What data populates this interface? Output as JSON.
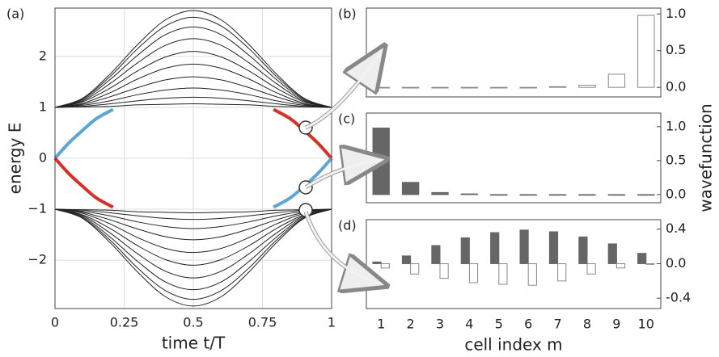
{
  "chart_data": [
    {
      "type": "line",
      "title": "(a)",
      "xlabel": "time t/T",
      "ylabel": "energy E",
      "x": [
        0,
        0.1,
        0.2,
        0.3,
        0.4,
        0.5,
        0.6,
        0.7,
        0.8,
        0.9,
        1
      ],
      "xlim": [
        0,
        1
      ],
      "xticks": [
        0,
        0.25,
        0.5,
        0.75,
        1
      ],
      "ylim": [
        -2.95,
        2.95
      ],
      "yticks": [
        {
          "value": -2,
          "label": "−2"
        },
        {
          "value": -1,
          "label": "−1"
        },
        0,
        1,
        2
      ],
      "grid": true,
      "series": [
        {
          "color": "#222222",
          "values": [
            1,
            1.01,
            1.02,
            1.05,
            1.06,
            1.07,
            1.06,
            1.05,
            1.02,
            1.01,
            1
          ]
        },
        {
          "color": "#222222",
          "values": [
            1,
            1.02,
            1.07,
            1.13,
            1.18,
            1.2,
            1.18,
            1.13,
            1.07,
            1.02,
            1
          ]
        },
        {
          "color": "#222222",
          "values": [
            1,
            1.04,
            1.13,
            1.25,
            1.34,
            1.38,
            1.34,
            1.25,
            1.13,
            1.04,
            1
          ]
        },
        {
          "color": "#222222",
          "values": [
            1,
            1.06,
            1.21,
            1.39,
            1.54,
            1.6,
            1.54,
            1.39,
            1.21,
            1.06,
            1
          ]
        },
        {
          "color": "#222222",
          "values": [
            1,
            1.08,
            1.29,
            1.56,
            1.77,
            1.85,
            1.77,
            1.56,
            1.29,
            1.08,
            1
          ]
        },
        {
          "color": "#222222",
          "values": [
            1,
            1.11,
            1.38,
            1.72,
            1.99,
            2.1,
            1.99,
            1.72,
            1.38,
            1.11,
            1
          ]
        },
        {
          "color": "#222222",
          "values": [
            1,
            1.13,
            1.47,
            1.88,
            2.22,
            2.35,
            2.22,
            1.88,
            1.47,
            1.13,
            1
          ]
        },
        {
          "color": "#222222",
          "values": [
            1,
            1.15,
            1.55,
            2.03,
            2.43,
            2.58,
            2.43,
            2.03,
            1.55,
            1.15,
            1
          ]
        },
        {
          "color": "#222222",
          "values": [
            1,
            1.17,
            1.61,
            2.16,
            2.6,
            2.77,
            2.6,
            2.16,
            1.61,
            1.17,
            1
          ]
        },
        {
          "color": "#222222",
          "values": [
            1,
            1.18,
            1.66,
            2.24,
            2.72,
            2.9,
            2.72,
            2.24,
            1.66,
            1.18,
            1
          ]
        },
        {
          "color": "#222222",
          "values": [
            -1,
            -1.01,
            -1.02,
            -1.05,
            -1.06,
            -1.07,
            -1.06,
            -1.05,
            -1.02,
            -1.01,
            -1
          ]
        },
        {
          "color": "#222222",
          "values": [
            -1,
            -1.02,
            -1.07,
            -1.13,
            -1.18,
            -1.2,
            -1.18,
            -1.13,
            -1.07,
            -1.02,
            -1
          ]
        },
        {
          "color": "#222222",
          "values": [
            -1,
            -1.04,
            -1.13,
            -1.25,
            -1.34,
            -1.38,
            -1.34,
            -1.25,
            -1.13,
            -1.04,
            -1
          ]
        },
        {
          "color": "#222222",
          "values": [
            -1,
            -1.06,
            -1.21,
            -1.39,
            -1.54,
            -1.6,
            -1.54,
            -1.39,
            -1.21,
            -1.06,
            -1
          ]
        },
        {
          "color": "#222222",
          "values": [
            -1,
            -1.08,
            -1.29,
            -1.56,
            -1.77,
            -1.85,
            -1.77,
            -1.56,
            -1.29,
            -1.08,
            -1
          ]
        },
        {
          "color": "#222222",
          "values": [
            -1,
            -1.11,
            -1.38,
            -1.72,
            -1.99,
            -2.1,
            -1.99,
            -1.72,
            -1.38,
            -1.11,
            -1
          ]
        },
        {
          "color": "#222222",
          "values": [
            -1,
            -1.13,
            -1.47,
            -1.88,
            -2.22,
            -2.35,
            -2.22,
            -1.88,
            -1.47,
            -1.13,
            -1
          ]
        },
        {
          "color": "#222222",
          "values": [
            -1,
            -1.15,
            -1.55,
            -2.03,
            -2.43,
            -2.58,
            -2.43,
            -2.03,
            -1.55,
            -1.15,
            -1
          ]
        },
        {
          "color": "#222222",
          "values": [
            -1,
            -1.17,
            -1.61,
            -2.16,
            -2.6,
            -2.77,
            -2.6,
            -2.16,
            -1.61,
            -1.17,
            -1
          ]
        },
        {
          "color": "#222222",
          "values": [
            -1,
            -1.18,
            -1.66,
            -2.24,
            -2.72,
            -2.9,
            -2.72,
            -2.24,
            -1.66,
            -1.18,
            -1
          ]
        },
        {
          "color": "#5aa7d6",
          "x": [
            0,
            0.05,
            0.1,
            0.15,
            0.21
          ],
          "values": [
            0,
            0.3,
            0.55,
            0.78,
            0.96
          ]
        },
        {
          "color": "#d93025",
          "x": [
            0,
            0.05,
            0.1,
            0.15,
            0.21
          ],
          "values": [
            0,
            -0.3,
            -0.55,
            -0.78,
            -0.96
          ]
        },
        {
          "color": "#d93025",
          "x": [
            0.79,
            0.85,
            0.9,
            0.95,
            1
          ],
          "values": [
            0.96,
            0.78,
            0.55,
            0.3,
            0
          ]
        },
        {
          "color": "#5aa7d6",
          "x": [
            0.79,
            0.85,
            0.9,
            0.95,
            1
          ],
          "values": [
            -0.96,
            -0.78,
            -0.55,
            -0.3,
            0
          ]
        }
      ]
    },
    {
      "type": "bar",
      "title": "(b)",
      "ylim": [
        -0.13,
        1.08
      ],
      "yticks": [
        {
          "value": 0,
          "label": "0.0"
        },
        0.5,
        {
          "value": 1,
          "label": "1.0"
        }
      ],
      "series": [
        {
          "color": "#ffffff",
          "values": [
            0,
            0,
            0,
            0,
            0,
            0,
            0.01,
            0.03,
            0.18,
            0.98
          ]
        }
      ]
    },
    {
      "type": "bar",
      "title": "(c)",
      "ylabel": "wavefunction",
      "ylim": [
        -0.12,
        1.2
      ],
      "yticks": [
        {
          "value": 0,
          "label": "0.0"
        },
        0.5,
        {
          "value": 1,
          "label": "1.0"
        }
      ],
      "series": [
        {
          "color": "#666666",
          "values": [
            0.98,
            0.18,
            0.03,
            0.01,
            0,
            0,
            0,
            0,
            0,
            0
          ]
        }
      ]
    },
    {
      "type": "bar",
      "title": "(d)",
      "xlabel": "cell index m",
      "categories": [
        "1",
        "2",
        "3",
        "4",
        "5",
        "6",
        "7",
        "8",
        "9",
        "10"
      ],
      "ylim": [
        -0.52,
        0.51
      ],
      "yticks": [
        {
          "value": -0.4,
          "label": "-0.4"
        },
        {
          "value": 0,
          "label": "0.0"
        },
        0.4
      ],
      "series": [
        {
          "color": "#666666",
          "values": [
            0.02,
            0.09,
            0.21,
            0.3,
            0.36,
            0.39,
            0.37,
            0.31,
            0.23,
            0.12
          ]
        },
        {
          "color": "#ffffff",
          "values": [
            -0.05,
            -0.12,
            -0.17,
            -0.22,
            -0.24,
            -0.25,
            -0.2,
            -0.12,
            -0.05,
            0
          ]
        }
      ]
    }
  ]
}
